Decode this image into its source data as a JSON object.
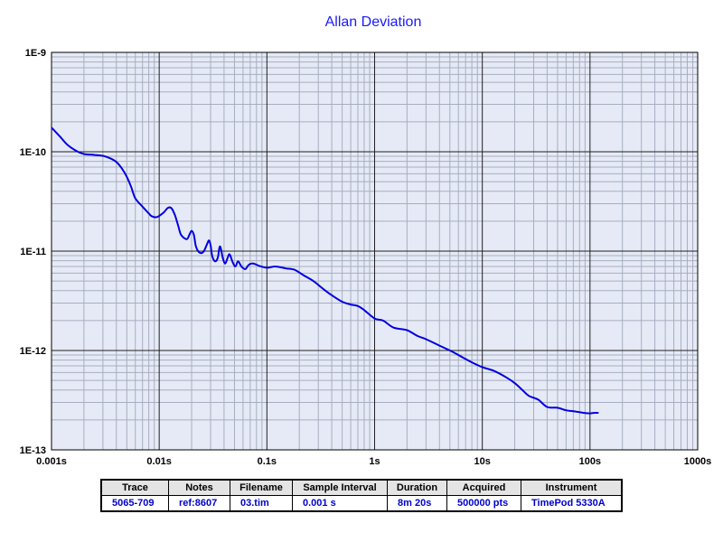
{
  "chart_data": {
    "type": "line",
    "title": "Allan Deviation",
    "x_scale": "log",
    "y_scale": "log",
    "xlim": [
      0.001,
      1000
    ],
    "ylim": [
      1e-13,
      1e-09
    ],
    "grid": true,
    "x_ticks": [
      "0.001s",
      "0.01s",
      "0.1s",
      "1s",
      "10s",
      "100s",
      "1000s"
    ],
    "y_ticks": [
      "1E-13",
      "1E-12",
      "1E-11",
      "1E-10",
      "1E-9"
    ],
    "series": [
      {
        "color": "#0000e0",
        "points": [
          [
            0.001,
            1.75e-10
          ],
          [
            0.0012,
            1.42e-10
          ],
          [
            0.0014,
            1.18e-10
          ],
          [
            0.0017,
            1.02e-10
          ],
          [
            0.002,
            9.5e-11
          ],
          [
            0.0025,
            9.3e-11
          ],
          [
            0.003,
            9.1e-11
          ],
          [
            0.0035,
            8.6e-11
          ],
          [
            0.004,
            7.9e-11
          ],
          [
            0.0045,
            6.8e-11
          ],
          [
            0.005,
            5.6e-11
          ],
          [
            0.0055,
            4.4e-11
          ],
          [
            0.006,
            3.4e-11
          ],
          [
            0.007,
            2.8e-11
          ],
          [
            0.008,
            2.4e-11
          ],
          [
            0.0085,
            2.25e-11
          ],
          [
            0.0095,
            2.2e-11
          ],
          [
            0.011,
            2.45e-11
          ],
          [
            0.012,
            2.72e-11
          ],
          [
            0.013,
            2.7e-11
          ],
          [
            0.014,
            2.3e-11
          ],
          [
            0.015,
            1.8e-11
          ],
          [
            0.016,
            1.45e-11
          ],
          [
            0.018,
            1.32e-11
          ],
          [
            0.019,
            1.45e-11
          ],
          [
            0.02,
            1.6e-11
          ],
          [
            0.021,
            1.45e-11
          ],
          [
            0.022,
            1.1e-11
          ],
          [
            0.024,
            9.6e-12
          ],
          [
            0.026,
            1e-11
          ],
          [
            0.028,
            1.2e-11
          ],
          [
            0.029,
            1.28e-11
          ],
          [
            0.03,
            1.15e-11
          ],
          [
            0.031,
            9e-12
          ],
          [
            0.033,
            7.9e-12
          ],
          [
            0.035,
            8.6e-12
          ],
          [
            0.036,
            1.05e-11
          ],
          [
            0.037,
            1.1e-11
          ],
          [
            0.039,
            8.5e-12
          ],
          [
            0.041,
            7.5e-12
          ],
          [
            0.043,
            8.5e-12
          ],
          [
            0.045,
            9.3e-12
          ],
          [
            0.048,
            7.8e-12
          ],
          [
            0.051,
            7e-12
          ],
          [
            0.054,
            7.9e-12
          ],
          [
            0.058,
            7e-12
          ],
          [
            0.063,
            6.6e-12
          ],
          [
            0.068,
            7.3e-12
          ],
          [
            0.075,
            7.5e-12
          ],
          [
            0.085,
            7.1e-12
          ],
          [
            0.1,
            6.8e-12
          ],
          [
            0.12,
            7e-12
          ],
          [
            0.15,
            6.7e-12
          ],
          [
            0.18,
            6.5e-12
          ],
          [
            0.22,
            5.7e-12
          ],
          [
            0.27,
            5e-12
          ],
          [
            0.33,
            4.2e-12
          ],
          [
            0.4,
            3.6e-12
          ],
          [
            0.5,
            3.1e-12
          ],
          [
            0.6,
            2.9e-12
          ],
          [
            0.7,
            2.8e-12
          ],
          [
            0.8,
            2.55e-12
          ],
          [
            1.0,
            2.1e-12
          ],
          [
            1.2,
            2e-12
          ],
          [
            1.5,
            1.7e-12
          ],
          [
            2.0,
            1.6e-12
          ],
          [
            2.5,
            1.4e-12
          ],
          [
            3.0,
            1.3e-12
          ],
          [
            4.0,
            1.12e-12
          ],
          [
            5.0,
            1e-12
          ],
          [
            6.0,
            9e-13
          ],
          [
            8.0,
            7.6e-13
          ],
          [
            10.0,
            6.8e-13
          ],
          [
            13.0,
            6.2e-13
          ],
          [
            17.0,
            5.3e-13
          ],
          [
            20.0,
            4.7e-13
          ],
          [
            23.0,
            4.1e-13
          ],
          [
            27.0,
            3.5e-13
          ],
          [
            33.0,
            3.2e-13
          ],
          [
            40.0,
            2.7e-13
          ],
          [
            50.0,
            2.65e-13
          ],
          [
            60.0,
            2.5e-13
          ],
          [
            70.0,
            2.45e-13
          ],
          [
            90.0,
            2.35e-13
          ],
          [
            100.0,
            2.33e-13
          ],
          [
            110.0,
            2.36e-13
          ],
          [
            120.0,
            2.36e-13
          ]
        ]
      }
    ],
    "table": {
      "headers": [
        "Trace",
        "Notes",
        "Filename",
        "Sample Interval",
        "Duration",
        "Acquired",
        "Instrument"
      ],
      "values": [
        "5065-709",
        "ref:8607",
        "03.tim",
        "0.001 s",
        "8m 20s",
        "500000 pts",
        "TimePod 5330A"
      ]
    }
  }
}
